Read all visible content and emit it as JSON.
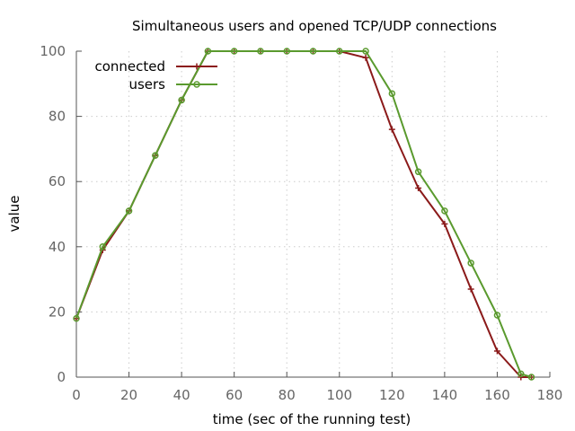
{
  "chart_data": {
    "type": "line",
    "title": "Simultaneous users and opened TCP/UDP connections",
    "xlabel": "time (sec of the running test)",
    "ylabel": "value",
    "xlim": [
      0,
      180
    ],
    "ylim": [
      0,
      100
    ],
    "xticks": [
      0,
      20,
      40,
      60,
      80,
      100,
      120,
      140,
      160,
      180
    ],
    "yticks": [
      0,
      20,
      40,
      60,
      80,
      100
    ],
    "grid": true,
    "legend_position": "top-left",
    "series": [
      {
        "name": "connected",
        "color": "#8b1a1a",
        "marker": "plus",
        "points": [
          [
            0,
            18
          ],
          [
            10,
            39
          ],
          [
            20,
            51
          ],
          [
            30,
            68
          ],
          [
            40,
            85
          ],
          [
            50,
            100
          ],
          [
            60,
            100
          ],
          [
            70,
            100
          ],
          [
            80,
            100
          ],
          [
            90,
            100
          ],
          [
            100,
            100
          ],
          [
            110,
            98
          ],
          [
            120,
            76
          ],
          [
            130,
            58
          ],
          [
            140,
            47
          ],
          [
            150,
            27
          ],
          [
            160,
            8
          ],
          [
            169,
            0
          ],
          [
            173,
            0
          ]
        ]
      },
      {
        "name": "users",
        "color": "#5a9a2e",
        "marker": "circle",
        "points": [
          [
            0,
            18
          ],
          [
            10,
            40
          ],
          [
            20,
            51
          ],
          [
            30,
            68
          ],
          [
            40,
            85
          ],
          [
            50,
            100
          ],
          [
            60,
            100
          ],
          [
            70,
            100
          ],
          [
            80,
            100
          ],
          [
            90,
            100
          ],
          [
            100,
            100
          ],
          [
            110,
            100
          ],
          [
            120,
            87
          ],
          [
            130,
            63
          ],
          [
            140,
            51
          ],
          [
            150,
            35
          ],
          [
            160,
            19
          ],
          [
            169,
            1
          ],
          [
            173,
            0
          ]
        ]
      }
    ]
  }
}
